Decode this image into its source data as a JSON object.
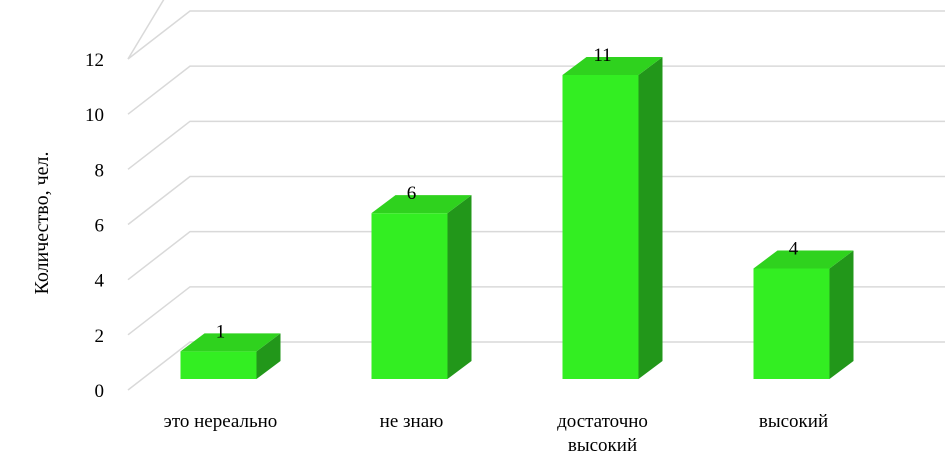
{
  "chart_data": {
    "type": "bar",
    "style": "3d-column",
    "categories": [
      [
        "это нереально"
      ],
      [
        "не знаю"
      ],
      [
        "достаточно",
        "высокий"
      ],
      [
        "высокий"
      ]
    ],
    "values": [
      1,
      6,
      11,
      4
    ],
    "data_labels": [
      "1",
      "6",
      "11",
      "4"
    ],
    "title": "",
    "xlabel": "",
    "ylabel": "Количество, чел.",
    "ylim": [
      0,
      12
    ],
    "yticks": [
      "0",
      "2",
      "4",
      "6",
      "8",
      "10",
      "12"
    ],
    "grid": true,
    "legend": "none",
    "colors": {
      "bar_front": "#33ee22",
      "bar_top": "#2fd21e",
      "bar_side": "#22971a",
      "grid": "#d9d9d9"
    }
  }
}
